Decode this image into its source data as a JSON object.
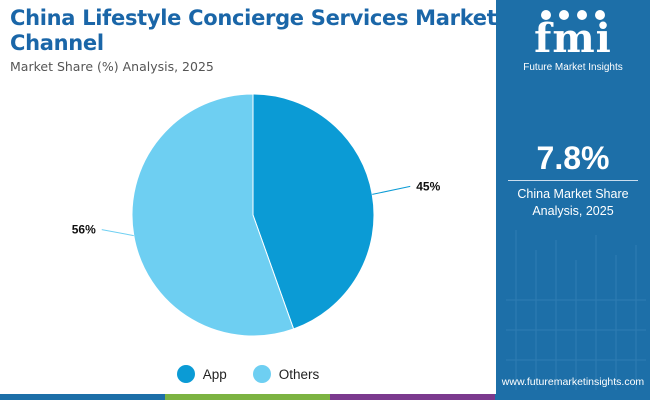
{
  "title": "China Lifestyle Concierge Services Market By Booking Channel",
  "subtitle": "Market Share (%) Analysis, 2025",
  "sidebar": {
    "logo_word": "fmi",
    "logo_caption": "Future Market Insights",
    "big_value": "7.8%",
    "value_label": "China Market Share Analysis, 2025",
    "url": "www.futuremarketinsights.com"
  },
  "colors": {
    "title": "#1a66a8",
    "sidebar": "#1d6fa8",
    "bottom_bar": [
      "#1d6fa8",
      "#7cb342",
      "#7b3a8e",
      "#1d6fa8"
    ]
  },
  "chart_data": {
    "type": "pie",
    "title": "",
    "slices": [
      {
        "label": "App",
        "value": 45,
        "display": "45%",
        "color": "#0b9bd5"
      },
      {
        "label": "Others",
        "value": 56,
        "display": "56%",
        "color": "#6ecff2"
      }
    ],
    "legend": [
      "App",
      "Others"
    ],
    "legend_position": "bottom"
  }
}
